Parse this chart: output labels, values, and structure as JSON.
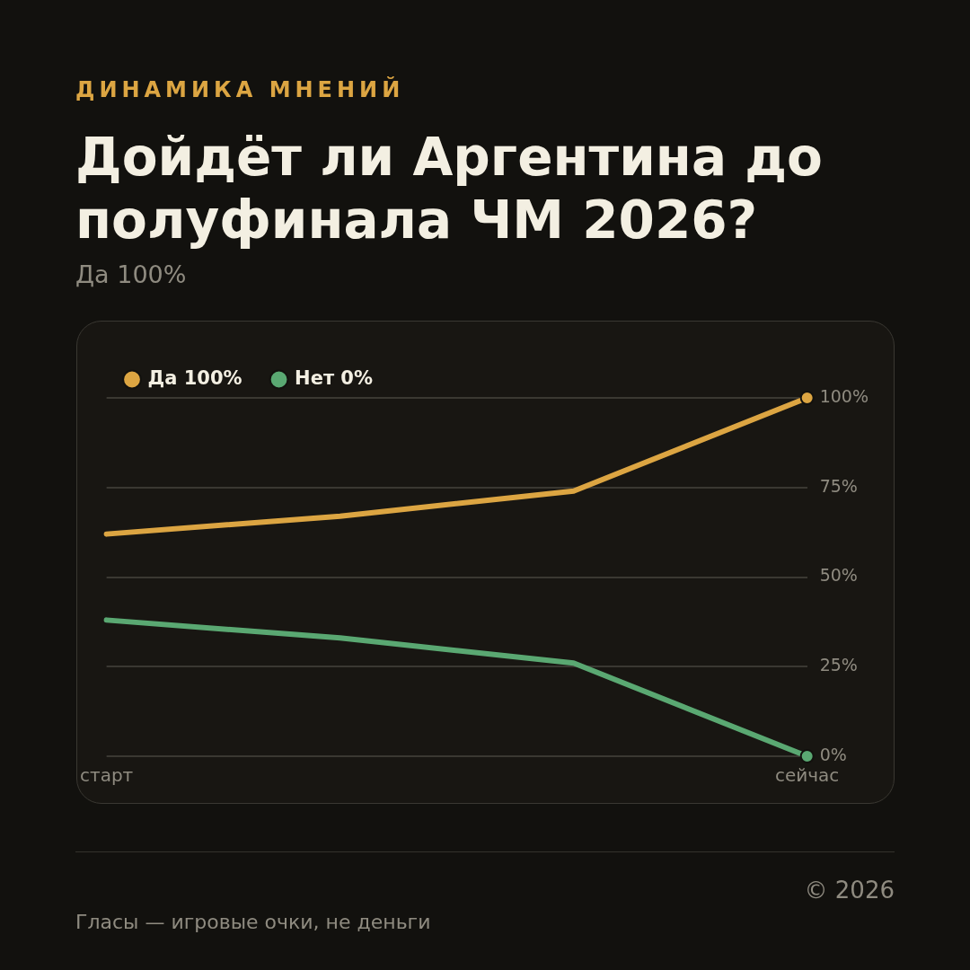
{
  "chart_data": {
    "type": "line",
    "title": "Дойдёт ли Аргентина до полуфинала ЧМ 2026?",
    "subtitle": "Да 100%",
    "annotations": [
      "ДИНАМИКА МНЕНИЙ",
      "Гласы — игровые очки, не деньги",
      "© 2026"
    ],
    "categories": [
      "старт",
      null,
      null,
      "сейчас"
    ],
    "series": [
      {
        "name": "Да 100%",
        "color": "#dca542",
        "values": [
          62,
          67,
          74,
          100
        ]
      },
      {
        "name": "Нет 0%",
        "color": "#5aa872",
        "values": [
          38,
          33,
          26,
          0
        ]
      }
    ],
    "ylim": [
      0,
      100
    ],
    "yticks": [
      {
        "value": 0,
        "label": "0%"
      },
      {
        "value": 25,
        "label": "25%"
      },
      {
        "value": 50,
        "label": "50%"
      },
      {
        "value": 75,
        "label": "75%"
      },
      {
        "value": 100,
        "label": "100%"
      }
    ],
    "grid": "y",
    "legend": "top left",
    "line_style": "solid"
  }
}
